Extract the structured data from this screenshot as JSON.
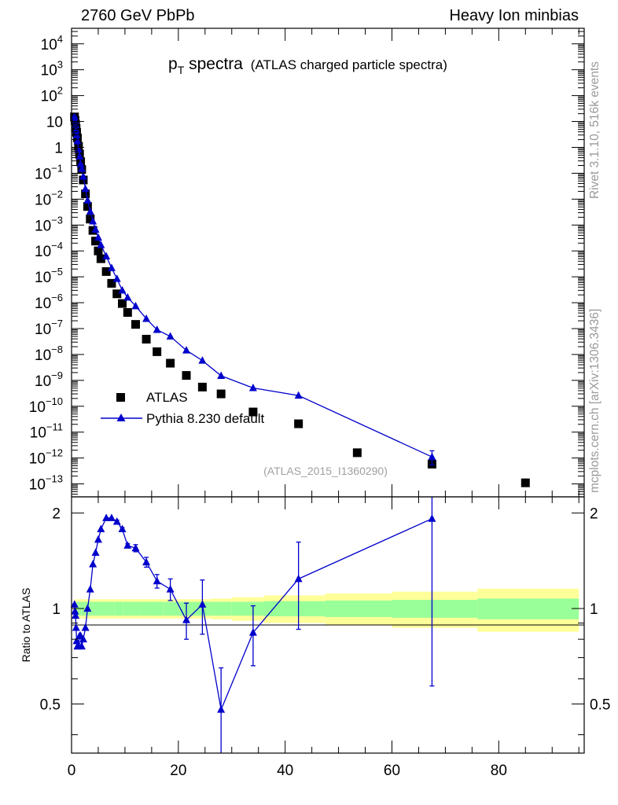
{
  "header": {
    "left": "2760 GeV PbPb",
    "right": "Heavy Ion minbias"
  },
  "side_labels": {
    "rivet": "Rivet 3.1.10,  516k events",
    "mcplots": "mcplots.cern.ch [arXiv:1306.3436]"
  },
  "colors": {
    "mc": "#0000cc",
    "data": "#000000",
    "band_inner": "#99ff99",
    "band_outer": "#ffff99"
  },
  "chart_data": {
    "type": "scatter",
    "title_main": "p",
    "title_sub": "T",
    "title_rest": " spectra",
    "title_note": "(ATLAS charged particle spectra)",
    "watermark": "(ATLAS_2015_I1360290)",
    "upper": {
      "yscale": "log",
      "ylim_exp": [
        -13.5,
        4.6
      ],
      "ytick_exps": [
        4,
        3,
        2,
        1,
        0,
        -1,
        -2,
        -3,
        -4,
        -5,
        -6,
        -7,
        -8,
        -9,
        -10,
        -11,
        -12,
        -13
      ],
      "ytick_labels": [
        "10^4",
        "10^3",
        "10^2",
        "10",
        "1",
        "10^-1",
        "10^-2",
        "10^-3",
        "10^-4",
        "10^-5",
        "10^-6",
        "10^-7",
        "10^-8",
        "10^-9",
        "10^-10",
        "10^-11",
        "10^-12",
        "10^-13"
      ],
      "legend": [
        {
          "name": "ATLAS",
          "marker": "square"
        },
        {
          "name": "Pythia 8.230 default",
          "marker": "triangle"
        }
      ],
      "series": [
        {
          "name": "ATLAS",
          "x": [
            0.55,
            0.65,
            0.75,
            0.85,
            0.95,
            1.1,
            1.3,
            1.5,
            1.7,
            1.9,
            2.2,
            2.6,
            3.0,
            3.5,
            4.0,
            4.5,
            5.0,
            5.5,
            6.5,
            7.5,
            8.5,
            9.5,
            10.5,
            12.0,
            14.0,
            16.0,
            18.5,
            21.5,
            24.5,
            28.0,
            34.0,
            42.5,
            53.5,
            67.5,
            85.0
          ],
          "y": [
            15,
            11,
            7.8,
            5.4,
            3.8,
            2.3,
            1.1,
            0.55,
            0.28,
            0.14,
            0.055,
            0.016,
            0.0052,
            0.0017,
            0.00062,
            0.00024,
            0.0001,
            5e-05,
            1.6e-05,
            5.6e-06,
            2.2e-06,
            9.3e-07,
            4.2e-07,
            1.45e-07,
            3.9e-08,
            1.28e-08,
            4.6e-09,
            1.55e-09,
            5.5e-10,
            3e-10,
            6e-11,
            2.1e-11,
            1.6e-12,
            5.8e-13,
            1.1e-13
          ]
        },
        {
          "name": "Pythia 8.230 default",
          "x": [
            0.55,
            0.65,
            0.75,
            0.85,
            0.95,
            1.1,
            1.3,
            1.5,
            1.7,
            1.9,
            2.2,
            2.6,
            3.0,
            3.5,
            4.0,
            4.5,
            5.0,
            5.5,
            6.5,
            7.5,
            8.5,
            9.5,
            10.5,
            12.0,
            14.0,
            16.0,
            18.5,
            21.5,
            24.5,
            28.0,
            34.0,
            42.5,
            67.5
          ],
          "y": [
            15.4,
            10.8,
            7.4,
            4.7,
            3.0,
            1.75,
            0.84,
            0.45,
            0.23,
            0.15,
            0.075,
            0.025,
            0.009,
            0.0033,
            0.0014,
            0.00067,
            0.00033,
            0.00017,
            6.2e-05,
            2.2e-05,
            8.4e-06,
            3e-06,
            1.6e-06,
            7.4e-07,
            2.4e-07,
            9e-08,
            5e-08,
            1.45e-08,
            5.8e-09,
            1.5e-09,
            5.1e-10,
            2.6e-10,
            1.1e-12
          ],
          "yerr_hi": [
            null,
            null,
            null,
            null,
            null,
            null,
            null,
            null,
            null,
            null,
            null,
            null,
            null,
            null,
            null,
            null,
            null,
            null,
            null,
            null,
            null,
            null,
            null,
            null,
            null,
            null,
            null,
            null,
            null,
            null,
            null,
            null,
            1.9e-12
          ],
          "yerr_lo": [
            null,
            null,
            null,
            null,
            null,
            null,
            null,
            null,
            null,
            null,
            null,
            null,
            null,
            null,
            null,
            null,
            null,
            null,
            null,
            null,
            null,
            null,
            null,
            null,
            null,
            null,
            null,
            null,
            null,
            null,
            null,
            null,
            5.4e-13
          ]
        }
      ]
    },
    "lower": {
      "ylabel": "Ratio to ATLAS",
      "ylim": [
        0.35,
        2.25
      ],
      "yticks": [
        0.5,
        1,
        2
      ],
      "ytick_labels": [
        "0.5",
        "1",
        "2"
      ],
      "xlim": [
        0,
        96
      ],
      "xticks": [
        0,
        20,
        40,
        60,
        80
      ],
      "xtick_labels": [
        "0",
        "20",
        "40",
        "60",
        "80"
      ],
      "band_edges": [
        0.5,
        0.6,
        0.7,
        0.8,
        0.9,
        1.0,
        1.2,
        1.4,
        1.6,
        1.8,
        2.0,
        2.4,
        2.8,
        3.2,
        3.6,
        4.0,
        4.8,
        5.6,
        6.4,
        7.2,
        8.0,
        9.6,
        11.2,
        12.8,
        14.8,
        17.2,
        20.2,
        23.2,
        26.2,
        30.0,
        36.0,
        47.5,
        60.0,
        76.0,
        95.0
      ],
      "band_inner_half": [
        0.05,
        0.05,
        0.05,
        0.05,
        0.05,
        0.05,
        0.05,
        0.05,
        0.05,
        0.05,
        0.05,
        0.05,
        0.05,
        0.05,
        0.05,
        0.05,
        0.05,
        0.05,
        0.05,
        0.05,
        0.05,
        0.05,
        0.05,
        0.05,
        0.05,
        0.05,
        0.05,
        0.05,
        0.05,
        0.05,
        0.055,
        0.06,
        0.065,
        0.075
      ],
      "band_outer_half": [
        0.07,
        0.07,
        0.07,
        0.07,
        0.07,
        0.07,
        0.07,
        0.07,
        0.07,
        0.07,
        0.07,
        0.07,
        0.07,
        0.07,
        0.07,
        0.07,
        0.07,
        0.07,
        0.07,
        0.07,
        0.07,
        0.07,
        0.07,
        0.07,
        0.07,
        0.07,
        0.07,
        0.07,
        0.075,
        0.085,
        0.1,
        0.115,
        0.13,
        0.155
      ],
      "ratio": {
        "x": [
          0.55,
          0.65,
          0.75,
          0.85,
          0.95,
          1.1,
          1.3,
          1.5,
          1.7,
          1.9,
          2.2,
          2.6,
          3.0,
          3.5,
          4.0,
          4.5,
          5.0,
          5.5,
          6.5,
          7.5,
          8.5,
          9.5,
          10.5,
          12.0,
          14.0,
          16.0,
          18.5,
          21.5,
          24.5,
          28.0,
          34.0,
          42.5,
          67.5
        ],
        "y": [
          1.03,
          0.98,
          0.95,
          0.87,
          0.79,
          0.76,
          0.76,
          0.82,
          0.82,
          0.76,
          0.8,
          0.87,
          1.0,
          1.15,
          1.38,
          1.5,
          1.65,
          1.78,
          1.93,
          1.93,
          1.88,
          1.78,
          1.58,
          1.55,
          1.4,
          1.22,
          1.15,
          0.92,
          1.03,
          0.48,
          0.84,
          1.24,
          1.92
        ],
        "err": [
          0.01,
          0.01,
          0.01,
          0.01,
          0.01,
          0.01,
          0.01,
          0.01,
          0.01,
          0.01,
          0.01,
          0.01,
          0.01,
          0.01,
          0.01,
          0.01,
          0.01,
          0.01,
          0.01,
          0.01,
          0.02,
          0.02,
          0.02,
          0.04,
          0.05,
          0.06,
          0.09,
          0.12,
          0.2,
          0.17,
          0.18,
          0.38,
          1.35
        ]
      }
    }
  }
}
